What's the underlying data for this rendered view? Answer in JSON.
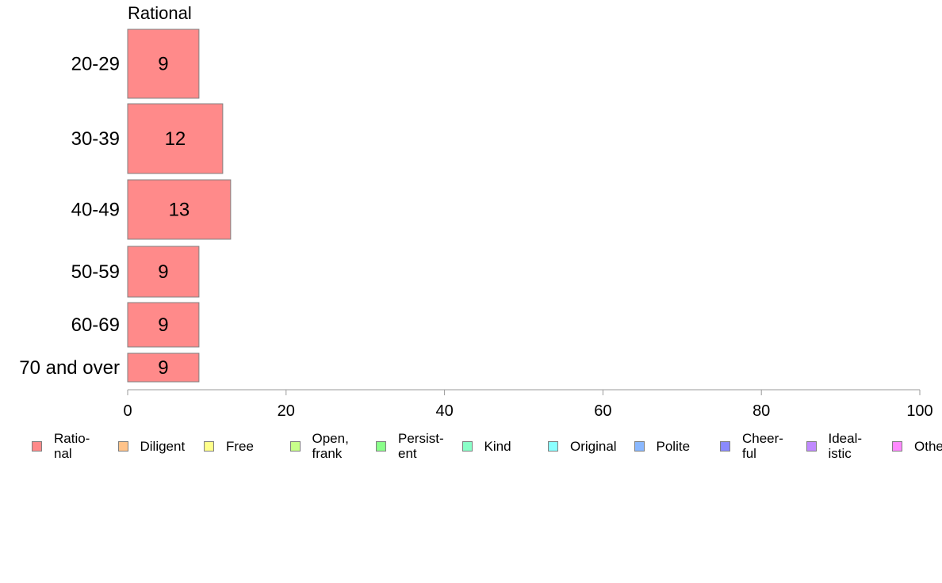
{
  "chart_data": {
    "type": "bar",
    "orientation": "horizontal",
    "panel_title": "Rational",
    "categories": [
      "20-29",
      "30-39",
      "40-49",
      "50-59",
      "60-69",
      "70 and over"
    ],
    "series": [
      {
        "name": "Ratio-\nnal",
        "values": [
          9,
          12,
          13,
          9,
          9,
          9
        ],
        "color": "#ff8a8a"
      }
    ],
    "data_labels": [
      "9",
      "12",
      "13",
      "9",
      "9",
      "9"
    ],
    "xlim": [
      0,
      100
    ],
    "xticks": [
      0,
      20,
      40,
      60,
      80,
      100
    ],
    "grid": false,
    "legend_position": "bottom"
  },
  "legend": [
    {
      "label": "Ratio-\nnal",
      "color": "#ff8a8a"
    },
    {
      "label": "Diligent",
      "color": "#ffc38a"
    },
    {
      "label": "Free",
      "color": "#ffff8a"
    },
    {
      "label": "Open,\nfrank",
      "color": "#c8ff8a"
    },
    {
      "label": "Persist-\nent",
      "color": "#8aff8a"
    },
    {
      "label": "Kind",
      "color": "#8affc8"
    },
    {
      "label": "Original",
      "color": "#8affff"
    },
    {
      "label": "Polite",
      "color": "#8ab8ff"
    },
    {
      "label": "Cheer-\nful",
      "color": "#8a8aff"
    },
    {
      "label": "Ideal-\nistic",
      "color": "#c08aff"
    },
    {
      "label": "Other",
      "color": "#ff8aff"
    }
  ]
}
